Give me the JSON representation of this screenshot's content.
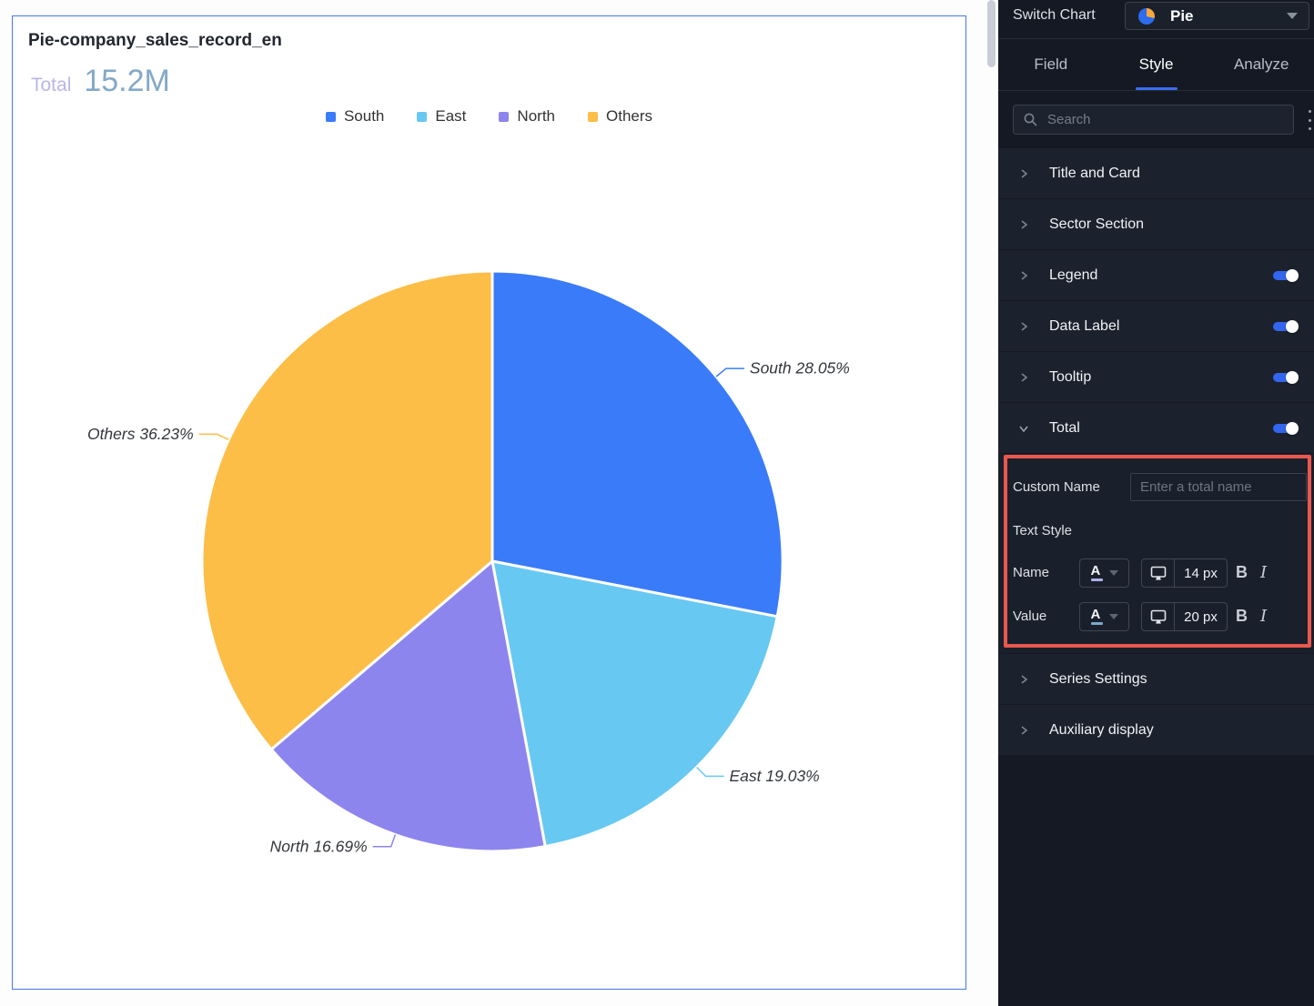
{
  "chart_card": {
    "title": "Pie-company_sales_record_en",
    "total_label": "Total",
    "total_value": "15.2M",
    "total_label_color": "#b9b6ea",
    "total_value_color": "#84a9c7",
    "border_color": "#4577f0",
    "label_text_color": "#33373c"
  },
  "chart_data": {
    "type": "pie",
    "title": "Pie-company_sales_record_en",
    "total_label": "Total",
    "total_value": "15.2M",
    "legend_position": "top",
    "legend": [
      "South",
      "East",
      "North",
      "Others"
    ],
    "series": [
      {
        "name": "South",
        "pct": 28.05,
        "color": "#3a7bfa"
      },
      {
        "name": "East",
        "pct": 19.03,
        "color": "#67c8f2"
      },
      {
        "name": "North",
        "pct": 16.69,
        "color": "#8d85ee"
      },
      {
        "name": "Others",
        "pct": 36.23,
        "color": "#fcbe47"
      }
    ],
    "data_label_format": "{name} {pct}%"
  },
  "panel": {
    "switch_chart_label": "Switch Chart",
    "chart_type_label": "Pie",
    "tabs": [
      {
        "label": "Field",
        "active": false
      },
      {
        "label": "Style",
        "active": true
      },
      {
        "label": "Analyze",
        "active": false
      }
    ],
    "search_placeholder": "Search",
    "sections": [
      {
        "label": "Title and Card"
      },
      {
        "label": "Sector Section"
      },
      {
        "label": "Legend",
        "toggle_on": true
      },
      {
        "label": "Data Label",
        "toggle_on": true
      },
      {
        "label": "Tooltip",
        "toggle_on": true
      },
      {
        "label": "Total",
        "toggle_on": true,
        "expanded": true
      },
      {
        "label": "Series Settings"
      },
      {
        "label": "Auxiliary display"
      }
    ],
    "total_settings": {
      "custom_name_label": "Custom Name",
      "custom_name_placeholder": "Enter a total name",
      "text_style_label": "Text Style",
      "name_row": {
        "label": "Name",
        "font_size": "14 px",
        "color_underline": "#aeb0ea"
      },
      "value_row": {
        "label": "Value",
        "font_size": "20 px",
        "color_underline": "#7ba9c9"
      },
      "bold_label": "B",
      "italic_label": "I"
    },
    "accent_color": "#3b6df0",
    "toggle_on_color": "#3366ee",
    "highlight_border_color": "#ea574e"
  }
}
